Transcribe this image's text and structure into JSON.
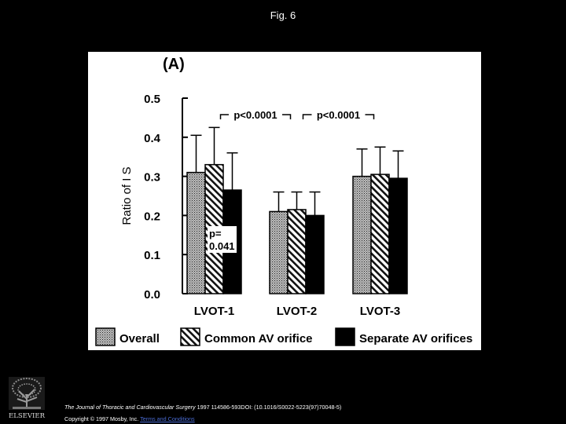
{
  "slide": {
    "title": "Fig. 6"
  },
  "citation": {
    "journal": "The Journal of Thoracic and Cardiovascular Surgery",
    "details": " 1997 114586-593DOI: (10.1016/S0022-5223(97)70048-5)",
    "copyright": "Copyright © 1997 Mosby, Inc. ",
    "terms": "Terms and Conditions"
  },
  "logo": {
    "text": "ELSEVIER",
    "icon": "elsevier-tree-icon"
  },
  "colors": {
    "background": "#000000",
    "panel": "#ffffff",
    "link": "#4a6cd4"
  },
  "chart_data": {
    "type": "bar",
    "panel_label": "(A)",
    "ylabel": "Ratio of I S",
    "ylim": [
      0.0,
      0.5
    ],
    "yticks": [
      "0.0",
      "0.1",
      "0.2",
      "0.3",
      "0.4",
      "0.5"
    ],
    "ytick_values": [
      0.0,
      0.1,
      0.2,
      0.3,
      0.4,
      0.5
    ],
    "categories": [
      "LVOT-1",
      "LVOT-2",
      "LVOT-3"
    ],
    "series": [
      {
        "name": "Overall",
        "pattern": "dotted",
        "values": [
          0.31,
          0.21,
          0.3
        ],
        "errors": [
          0.095,
          0.05,
          0.07
        ]
      },
      {
        "name": "Common AV orifice",
        "pattern": "hatched",
        "values": [
          0.33,
          0.215,
          0.305
        ],
        "errors": [
          0.095,
          0.045,
          0.07
        ]
      },
      {
        "name": "Separate AV orifices",
        "pattern": "solid",
        "values": [
          0.265,
          0.2,
          0.295
        ],
        "errors": [
          0.095,
          0.06,
          0.07
        ]
      }
    ],
    "annotations": [
      {
        "text": "p<0.0001",
        "between": [
          "LVOT-1",
          "LVOT-2"
        ]
      },
      {
        "text": "p<0.0001",
        "between": [
          "LVOT-2",
          "LVOT-3"
        ]
      },
      {
        "text": "p=",
        "text2": "0.041",
        "category": "LVOT-1",
        "series": [
          "Common AV orifice",
          "Separate AV orifices"
        ]
      }
    ],
    "legend_position": "bottom",
    "grid": false
  }
}
